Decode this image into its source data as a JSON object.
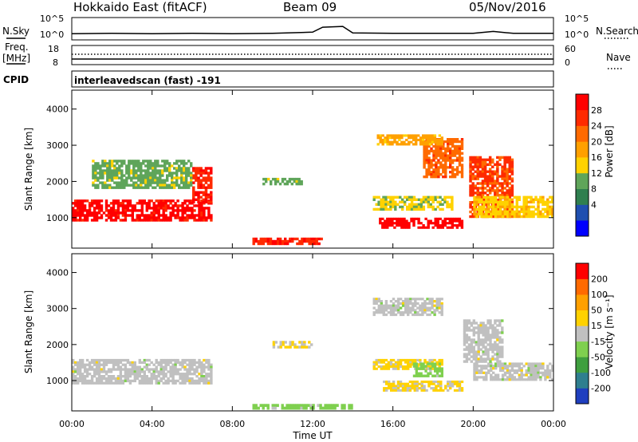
{
  "header": {
    "title": "Hokkaido East (fitACF)",
    "beam": "Beam 09",
    "date": "05/Nov/2016"
  },
  "noise_panel": {
    "left_label": "N.Sky",
    "right_label": "N.Search",
    "left_ticks": [
      "10^5",
      "10^0"
    ],
    "right_ticks": [
      "10^5",
      "10^0"
    ]
  },
  "freq_panel": {
    "left_label_1": "Freq.",
    "left_label_2": "[MHz]",
    "left_ticks": [
      "18",
      "8"
    ],
    "right_label": "Nave",
    "right_ticks": [
      "60",
      "0"
    ]
  },
  "cpid_panel": {
    "label": "CPID",
    "text": "interleavedscan (fast) -191"
  },
  "x_axis": {
    "label": "Time UT",
    "ticks": [
      "00:00",
      "04:00",
      "08:00",
      "12:00",
      "16:00",
      "20:00",
      "00:00"
    ]
  },
  "power_panel": {
    "ylabel": "Slant Range [km]",
    "yticks": [
      "4000",
      "3000",
      "2000",
      "1000"
    ],
    "colorbar_label": "Power [dB]",
    "colorbar_ticks": [
      "28",
      "24",
      "20",
      "16",
      "12",
      "8",
      "4"
    ],
    "colors": [
      "#0000ff",
      "#1f4fb0",
      "#2f7f4f",
      "#5fa55a",
      "#ffd200",
      "#ffa000",
      "#ff6a00",
      "#ff2a00",
      "#ff0000"
    ]
  },
  "velocity_panel": {
    "ylabel": "Slant Range [km]",
    "yticks": [
      "4000",
      "3000",
      "2000",
      "1000"
    ],
    "colorbar_label": "Velocity [m s⁻¹]",
    "colorbar_ticks": [
      "200",
      "100",
      "50",
      "15",
      "-15",
      "-50",
      "-100",
      "-200"
    ],
    "colors": [
      "#1f3fbf",
      "#2f7f8f",
      "#3f9f3f",
      "#7fd04f",
      "#c0c0c0",
      "#ffd200",
      "#ffa000",
      "#ff6a00",
      "#ff0000"
    ]
  },
  "chart_data": [
    {
      "type": "line",
      "title": "N.Sky / N.Search",
      "x": [
        0,
        2,
        4,
        6,
        8,
        10,
        12,
        12.5,
        13,
        13.5,
        14,
        16,
        18,
        20,
        21,
        22,
        24
      ],
      "series": [
        {
          "name": "N.Sky",
          "values": [
            1.2,
            1.3,
            1.2,
            1.3,
            1.2,
            1.3,
            1.6,
            2.9,
            3.0,
            3.1,
            1.4,
            1.3,
            1.3,
            1.3,
            1.8,
            1.3,
            1.3
          ]
        }
      ],
      "xlim": [
        0,
        24
      ],
      "ylim": [
        0,
        5
      ]
    },
    {
      "type": "heatmap",
      "title": "Power [dB]",
      "xlabel": "Time UT",
      "ylabel": "Slant Range [km]",
      "xlim": [
        0,
        24
      ],
      "ylim": [
        180,
        4500
      ],
      "zlim": [
        0,
        30
      ],
      "regions": [
        {
          "t": [
            0,
            7
          ],
          "range": [
            900,
            1500
          ],
          "value": 28
        },
        {
          "t": [
            6,
            7
          ],
          "range": [
            1400,
            2400
          ],
          "value": 26
        },
        {
          "t": [
            9,
            12.5
          ],
          "range": [
            250,
            450
          ],
          "value": 26
        },
        {
          "t": [
            15.3,
            19.5
          ],
          "range": [
            700,
            1000
          ],
          "value": 29
        },
        {
          "t": [
            19.8,
            22
          ],
          "range": [
            1000,
            2700
          ],
          "value": 24
        },
        {
          "t": [
            20,
            24
          ],
          "range": [
            1000,
            1600
          ],
          "value": 16
        },
        {
          "t": [
            15,
            19
          ],
          "range": [
            1200,
            1600
          ],
          "value": 14
        },
        {
          "t": [
            17.5,
            19.5
          ],
          "range": [
            2100,
            3200
          ],
          "value": 22
        },
        {
          "t": [
            1,
            6
          ],
          "range": [
            1800,
            2600
          ],
          "value": 12
        },
        {
          "t": [
            15.2,
            18.5
          ],
          "range": [
            3000,
            3300
          ],
          "value": 18
        },
        {
          "t": [
            9.5,
            11.5
          ],
          "range": [
            1900,
            2100
          ],
          "value": 12
        }
      ]
    },
    {
      "type": "heatmap",
      "title": "Velocity [m s⁻¹]",
      "xlabel": "Time UT",
      "ylabel": "Slant Range [km]",
      "xlim": [
        0,
        24
      ],
      "ylim": [
        180,
        4500
      ],
      "zlim": [
        -200,
        200
      ],
      "regions": [
        {
          "t": [
            0,
            7
          ],
          "range": [
            900,
            1600
          ],
          "value": 0
        },
        {
          "t": [
            15,
            18.5
          ],
          "range": [
            1300,
            1600
          ],
          "value": 40
        },
        {
          "t": [
            15.5,
            19.5
          ],
          "range": [
            700,
            1000
          ],
          "value": 30
        },
        {
          "t": [
            17,
            18.5
          ],
          "range": [
            1100,
            1500
          ],
          "value": -40
        },
        {
          "t": [
            15,
            18.5
          ],
          "range": [
            2800,
            3300
          ],
          "value": 0
        },
        {
          "t": [
            20,
            24
          ],
          "range": [
            1000,
            1500
          ],
          "value": 0
        },
        {
          "t": [
            19.5,
            21.5
          ],
          "range": [
            1500,
            2700
          ],
          "value": 0
        },
        {
          "t": [
            10,
            12
          ],
          "range": [
            1900,
            2100
          ],
          "value": 30
        },
        {
          "t": [
            9,
            14
          ],
          "range": [
            200,
            350
          ],
          "value": -40
        }
      ]
    }
  ]
}
